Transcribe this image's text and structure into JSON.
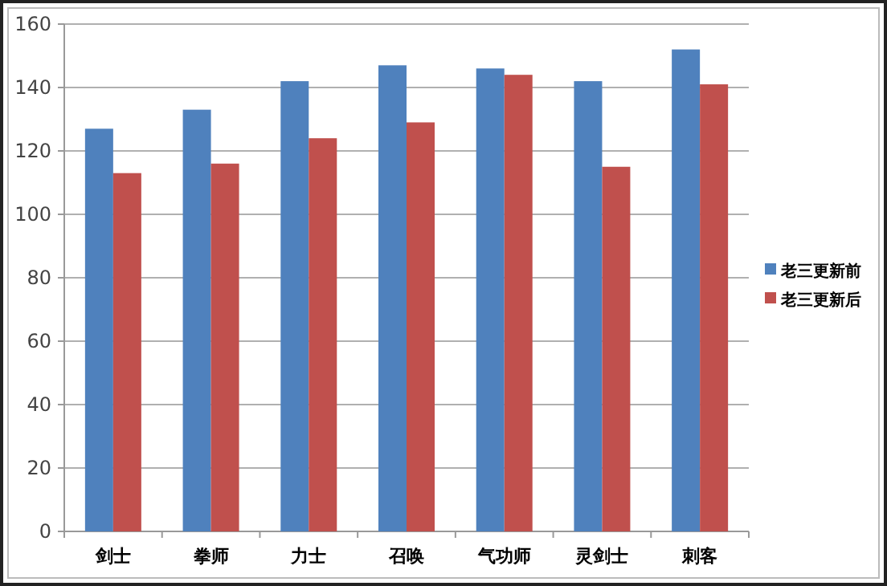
{
  "chart_data": {
    "type": "bar",
    "categories": [
      "剑士",
      "拳师",
      "力士",
      "召唤",
      "气功师",
      "灵剑士",
      "刺客"
    ],
    "series": [
      {
        "name": "老三更新前",
        "color": "#4f81bd",
        "values": [
          127,
          133,
          142,
          147,
          146,
          142,
          152
        ]
      },
      {
        "name": "老三更新后",
        "color": "#c0504d",
        "values": [
          113,
          116,
          124,
          129,
          144,
          115,
          141
        ]
      }
    ],
    "ylim": [
      0,
      160
    ],
    "yticks": [
      0,
      20,
      40,
      60,
      80,
      100,
      120,
      140,
      160
    ],
    "grid": "y",
    "legend": "right"
  }
}
